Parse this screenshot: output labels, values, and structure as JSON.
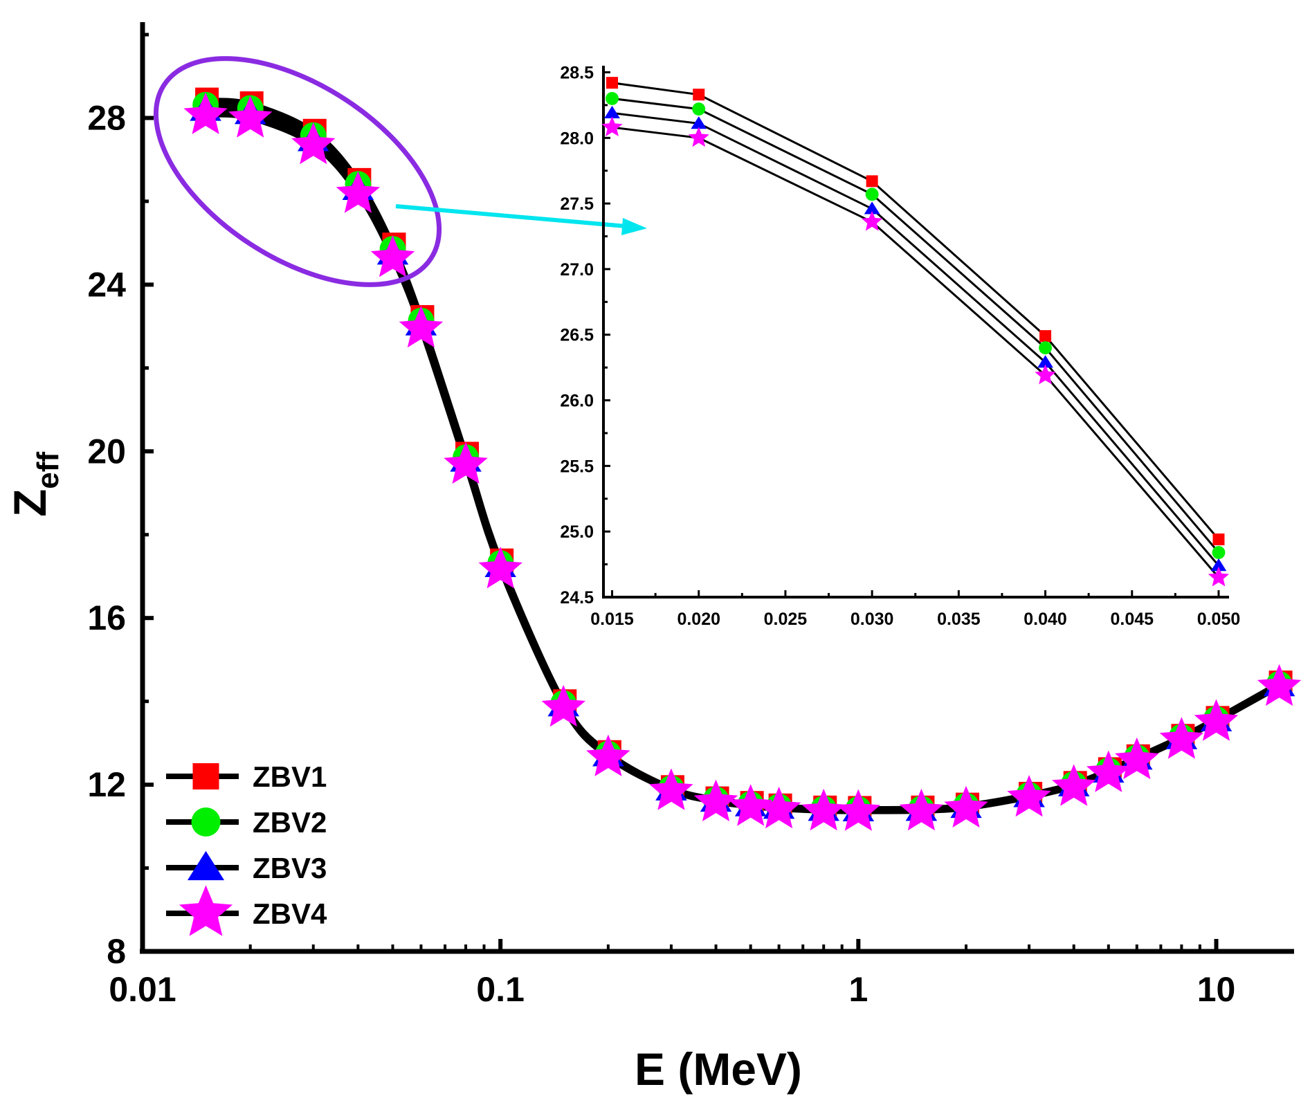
{
  "chart_data": [
    {
      "type": "line",
      "role": "main",
      "title": "",
      "xlabel": "E (MeV)",
      "ylabel": {
        "main": "Z",
        "sub": "eff"
      },
      "xscale": "log",
      "xlim": [
        0.01,
        16.5
      ],
      "ylim": [
        8,
        30.2
      ],
      "xticks": [
        0.01,
        0.1,
        1,
        10
      ],
      "xtick_labels": [
        "0.01",
        "0.1",
        "1",
        "10"
      ],
      "yticks": [
        8,
        12,
        16,
        20,
        24,
        28
      ],
      "ytick_labels": [
        "8",
        "12",
        "16",
        "20",
        "24",
        "28"
      ],
      "grid": false,
      "legend_position": "bottom-left",
      "x": [
        0.015,
        0.02,
        0.03,
        0.04,
        0.05,
        0.06,
        0.08,
        0.1,
        0.15,
        0.2,
        0.3,
        0.4,
        0.5,
        0.6,
        0.8,
        1,
        1.5,
        2,
        3,
        4,
        5,
        6,
        8,
        10,
        15
      ],
      "series": [
        {
          "name": "ZBV1",
          "marker": "square",
          "color": "#ff0000",
          "values": [
            28.42,
            28.33,
            27.67,
            26.49,
            24.94,
            23.2,
            19.92,
            17.36,
            13.98,
            12.76,
            11.92,
            11.65,
            11.54,
            11.48,
            11.43,
            11.42,
            11.43,
            11.5,
            11.76,
            12.02,
            12.35,
            12.66,
            13.15,
            13.58,
            14.43
          ]
        },
        {
          "name": "ZBV2",
          "marker": "circle",
          "color": "#00ee00",
          "values": [
            28.3,
            28.22,
            27.57,
            26.4,
            24.84,
            23.12,
            19.84,
            17.3,
            13.94,
            12.73,
            11.9,
            11.63,
            11.52,
            11.46,
            11.41,
            11.4,
            11.41,
            11.48,
            11.74,
            12.0,
            12.33,
            12.64,
            13.13,
            13.56,
            14.4
          ]
        },
        {
          "name": "ZBV3",
          "marker": "triangle",
          "color": "#0000ff",
          "values": [
            28.19,
            28.11,
            27.46,
            26.29,
            24.74,
            23.04,
            19.77,
            17.24,
            13.9,
            12.7,
            11.88,
            11.61,
            11.5,
            11.44,
            11.39,
            11.38,
            11.39,
            11.46,
            11.72,
            11.98,
            12.31,
            12.62,
            13.11,
            13.54,
            14.38
          ]
        },
        {
          "name": "ZBV4",
          "marker": "star",
          "color": "#ff00ff",
          "values": [
            28.08,
            28.0,
            27.36,
            26.19,
            24.65,
            22.96,
            19.69,
            17.18,
            13.86,
            12.67,
            11.86,
            11.59,
            11.48,
            11.42,
            11.37,
            11.36,
            11.37,
            11.44,
            11.7,
            11.96,
            12.29,
            12.6,
            13.09,
            13.52,
            14.36
          ]
        }
      ]
    },
    {
      "type": "line",
      "role": "inset",
      "title": "",
      "xlabel": "",
      "ylabel": "",
      "xlim": [
        0.0145,
        0.0506
      ],
      "ylim": [
        24.5,
        28.55
      ],
      "xticks": [
        0.015,
        0.02,
        0.025,
        0.03,
        0.035,
        0.04,
        0.045,
        0.05
      ],
      "xtick_labels": [
        "0.015",
        "0.020",
        "0.025",
        "0.030",
        "0.035",
        "0.040",
        "0.045",
        "0.050"
      ],
      "yticks": [
        24.5,
        25.0,
        25.5,
        26.0,
        26.5,
        27.0,
        27.5,
        28.0,
        28.5
      ],
      "ytick_labels": [
        "24.5",
        "25.0",
        "25.5",
        "26.0",
        "26.5",
        "27.0",
        "27.5",
        "28.0",
        "28.5"
      ],
      "grid": false,
      "x": [
        0.015,
        0.02,
        0.03,
        0.04,
        0.05
      ],
      "series": [
        {
          "name": "ZBV1",
          "marker": "square",
          "color": "#ff0000",
          "values": [
            28.42,
            28.33,
            27.67,
            26.49,
            24.94
          ]
        },
        {
          "name": "ZBV2",
          "marker": "circle",
          "color": "#00ee00",
          "values": [
            28.3,
            28.22,
            27.57,
            26.4,
            24.84
          ]
        },
        {
          "name": "ZBV3",
          "marker": "triangle",
          "color": "#0000ff",
          "values": [
            28.19,
            28.11,
            27.46,
            26.29,
            24.74
          ]
        },
        {
          "name": "ZBV4",
          "marker": "star",
          "color": "#ff00ff",
          "values": [
            28.08,
            28.0,
            27.36,
            26.19,
            24.65
          ]
        }
      ]
    }
  ],
  "annotations": {
    "highlight_ellipse_color": "#8a2be2",
    "zoom_arrow_color": "#00e5ee"
  }
}
